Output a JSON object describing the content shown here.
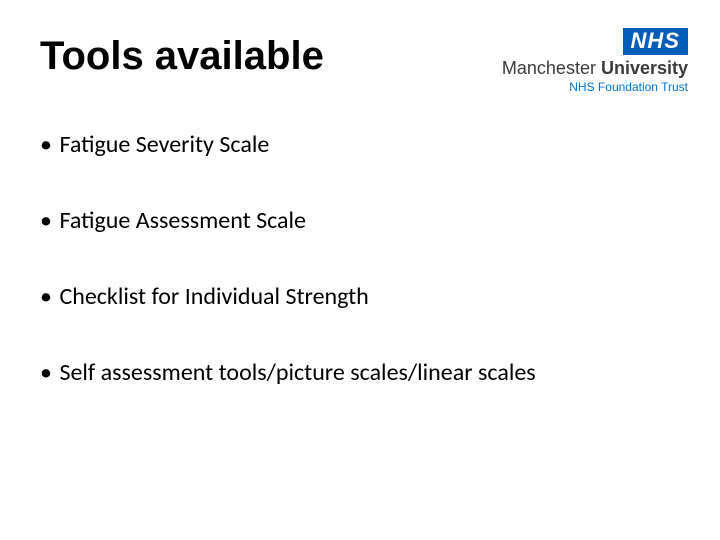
{
  "slide": {
    "title": "Tools available",
    "bullets": [
      "Fatigue Severity Scale",
      "Fatigue Assessment Scale",
      "Checklist for Individual Strength",
      "Self assessment tools/picture scales/linear scales"
    ],
    "title_font_family": "Comic Sans MS",
    "title_font_size_pt": 40,
    "title_font_weight": 700,
    "body_font_family": "Calibri",
    "body_font_size_pt": 24,
    "bullet_glyph": "•",
    "background_color": "#ffffff",
    "text_color": "#000000"
  },
  "logo": {
    "badge_text": "NHS",
    "badge_bg": "#005eb8",
    "badge_fg": "#ffffff",
    "line1_plain": "Manchester ",
    "line1_bold": "University",
    "line1_color": "#3b3b3b",
    "line2": "NHS Foundation Trust",
    "line2_color": "#0072ce"
  }
}
